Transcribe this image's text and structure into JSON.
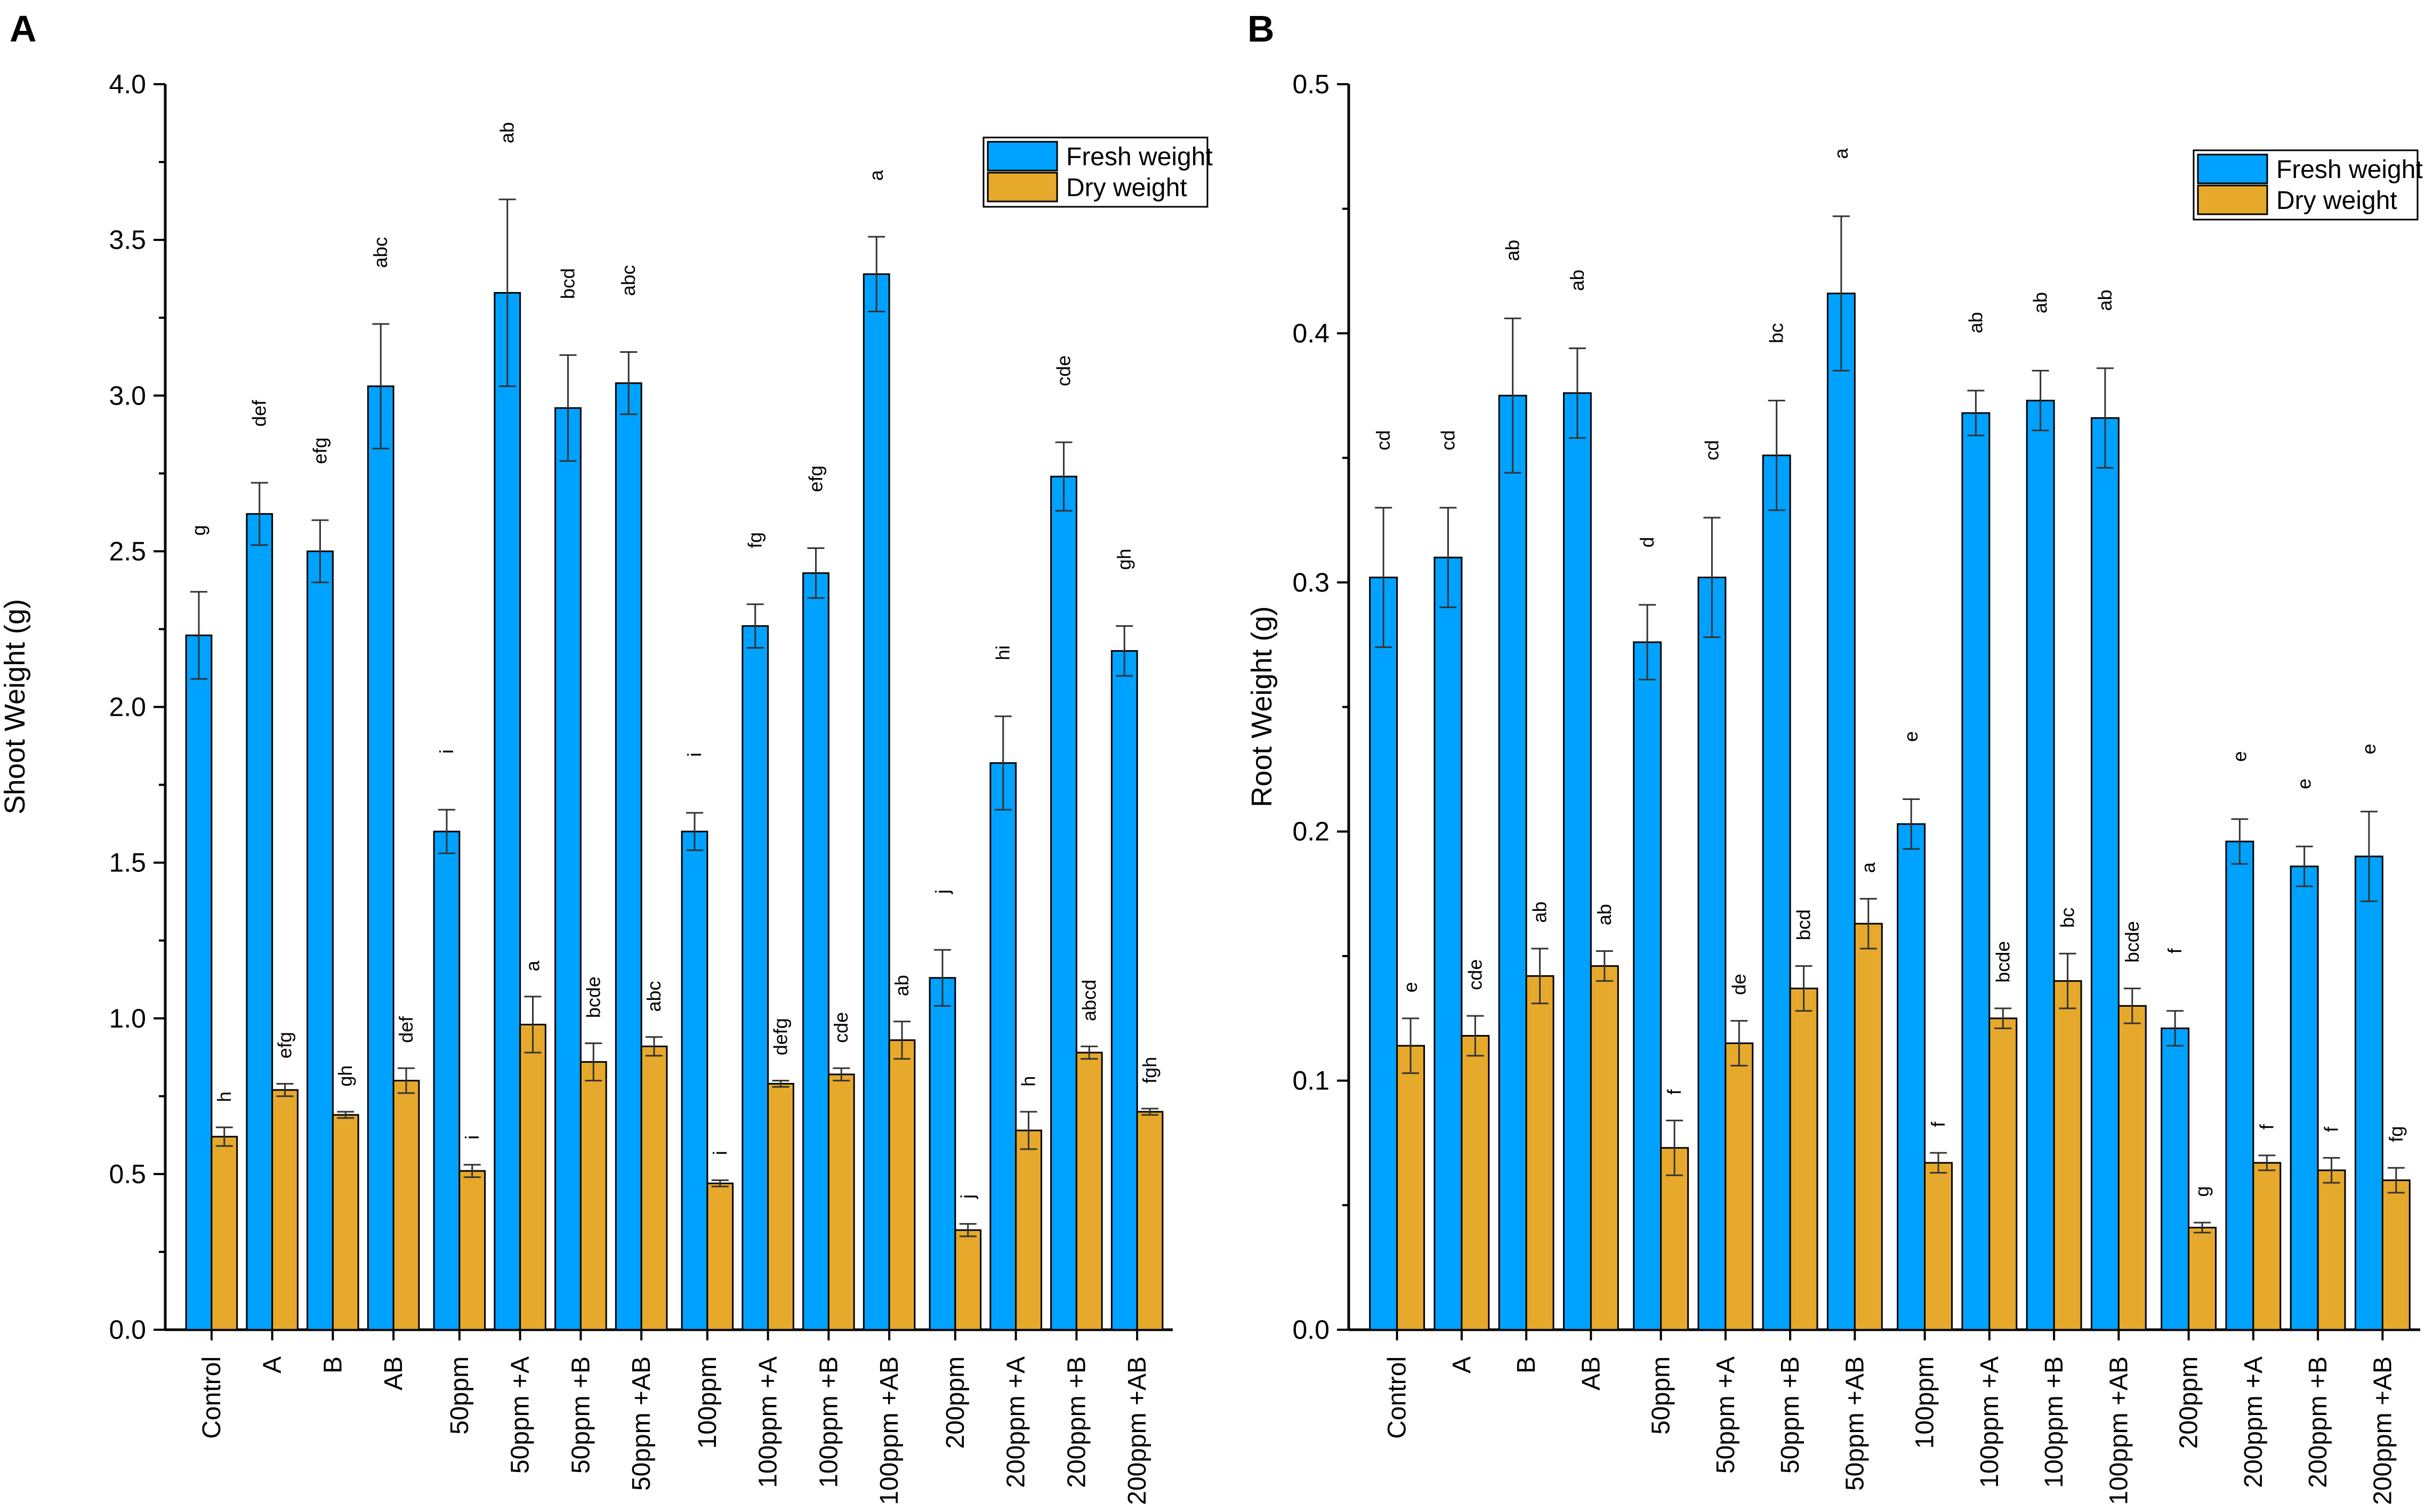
{
  "colors": {
    "fresh": "#00A2FF",
    "dry": "#E6A92B"
  },
  "chart_data": [
    {
      "panel": "A",
      "type": "bar",
      "ylabel": "Shoot Weight (g)",
      "ylim": [
        0,
        4.0
      ],
      "yticks": [
        "0.0",
        "0.5",
        "1.0",
        "1.5",
        "2.0",
        "2.5",
        "3.0",
        "3.5",
        "4.0"
      ],
      "legend": [
        "Fresh weight",
        "Dry weight"
      ],
      "legend_position": "top-right",
      "categories": [
        "Control",
        "A",
        "B",
        "AB",
        "50ppm",
        "50ppm +A",
        "50ppm +B",
        "50ppm +AB",
        "100ppm",
        "100ppm +A",
        "100ppm +B",
        "100ppm +AB",
        "200ppm",
        "200ppm +A",
        "200ppm +B",
        "200ppm +AB"
      ],
      "series": [
        {
          "name": "Fresh weight",
          "values": [
            2.23,
            2.62,
            2.5,
            3.03,
            1.6,
            3.33,
            2.96,
            3.04,
            1.6,
            2.26,
            2.43,
            3.39,
            1.13,
            1.82,
            2.74,
            2.18
          ],
          "errors": [
            0.14,
            0.1,
            0.1,
            0.2,
            0.07,
            0.3,
            0.17,
            0.1,
            0.06,
            0.07,
            0.08,
            0.12,
            0.09,
            0.15,
            0.11,
            0.08
          ],
          "sig": [
            "g",
            "def",
            "efg",
            "abc",
            "i",
            "ab",
            "bcd",
            "abc",
            "i",
            "fg",
            "efg",
            "a",
            "j",
            "hi",
            "cde",
            "gh"
          ]
        },
        {
          "name": "Dry weight",
          "values": [
            0.62,
            0.77,
            0.69,
            0.8,
            0.51,
            0.98,
            0.86,
            0.91,
            0.47,
            0.79,
            0.82,
            0.93,
            0.32,
            0.64,
            0.89,
            0.7
          ],
          "errors": [
            0.03,
            0.02,
            0.01,
            0.04,
            0.02,
            0.09,
            0.06,
            0.03,
            0.01,
            0.01,
            0.02,
            0.06,
            0.02,
            0.06,
            0.02,
            0.01
          ],
          "sig": [
            "h",
            "efg",
            "gh",
            "def",
            "i",
            "a",
            "bcde",
            "abc",
            "i",
            "defg",
            "cde",
            "ab",
            "j",
            "h",
            "abcd",
            "fgh"
          ]
        }
      ]
    },
    {
      "panel": "B",
      "type": "bar",
      "ylabel": "Root Weight (g)",
      "ylim": [
        0,
        0.5
      ],
      "yticks": [
        "0.0",
        "0.1",
        "0.2",
        "0.3",
        "0.4",
        "0.5"
      ],
      "legend": [
        "Fresh weight",
        "Dry weight"
      ],
      "legend_position": "top-right",
      "categories": [
        "Control",
        "A",
        "B",
        "AB",
        "50ppm",
        "50ppm +A",
        "50ppm +B",
        "50ppm +AB",
        "100ppm",
        "100ppm +A",
        "100ppm +B",
        "100ppm +AB",
        "200ppm",
        "200ppm +A",
        "200ppm +B",
        "200ppm +AB"
      ],
      "series": [
        {
          "name": "Fresh weight",
          "values": [
            0.302,
            0.31,
            0.375,
            0.376,
            0.276,
            0.302,
            0.351,
            0.416,
            0.203,
            0.368,
            0.373,
            0.366,
            0.121,
            0.196,
            0.186,
            0.19
          ],
          "errors": [
            0.028,
            0.02,
            0.031,
            0.018,
            0.015,
            0.024,
            0.022,
            0.031,
            0.01,
            0.009,
            0.012,
            0.02,
            0.007,
            0.009,
            0.008,
            0.018
          ],
          "sig": [
            "cd",
            "cd",
            "ab",
            "ab",
            "d",
            "cd",
            "bc",
            "a",
            "e",
            "ab",
            "ab",
            "ab",
            "f",
            "e",
            "e",
            "e"
          ]
        },
        {
          "name": "Dry weight",
          "values": [
            0.114,
            0.118,
            0.142,
            0.146,
            0.073,
            0.115,
            0.137,
            0.163,
            0.067,
            0.125,
            0.14,
            0.13,
            0.041,
            0.067,
            0.064,
            0.06
          ],
          "errors": [
            0.011,
            0.008,
            0.011,
            0.006,
            0.011,
            0.009,
            0.009,
            0.01,
            0.004,
            0.004,
            0.011,
            0.007,
            0.002,
            0.003,
            0.005,
            0.005
          ],
          "sig": [
            "e",
            "cde",
            "ab",
            "ab",
            "f",
            "de",
            "bcd",
            "a",
            "f",
            "bcde",
            "bc",
            "bcde",
            "g",
            "f",
            "f",
            "fg"
          ]
        }
      ]
    }
  ]
}
